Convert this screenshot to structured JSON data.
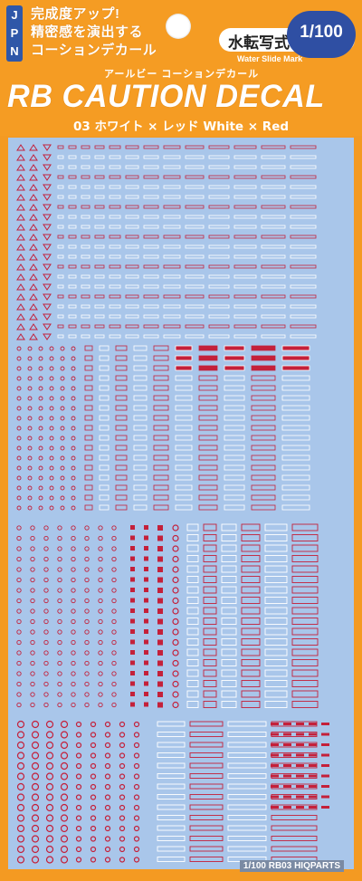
{
  "header": {
    "badge_letters": [
      "J",
      "P",
      "N"
    ],
    "tagline_lines": [
      "完成度アップ!",
      "精密感を演出する",
      "コーションデカール"
    ],
    "type_label": "水転写式",
    "scale_label": "1/100",
    "water_slide_label": "Water Slide Mark",
    "kana_title": "アールビー コーションデカール",
    "product_title": "RB CAUTION DECAL",
    "subtitle": "03 ホワイト × レッド White × Red"
  },
  "footer": {
    "brand_label": "1/100 RB03 HIQPARTS"
  },
  "colors": {
    "background_orange": "#f59c23",
    "badge_blue": "#2f57a8",
    "sheet_blue": "#a9c6ea",
    "decal_red": "#c4203a",
    "decal_white": "#ffffff"
  }
}
